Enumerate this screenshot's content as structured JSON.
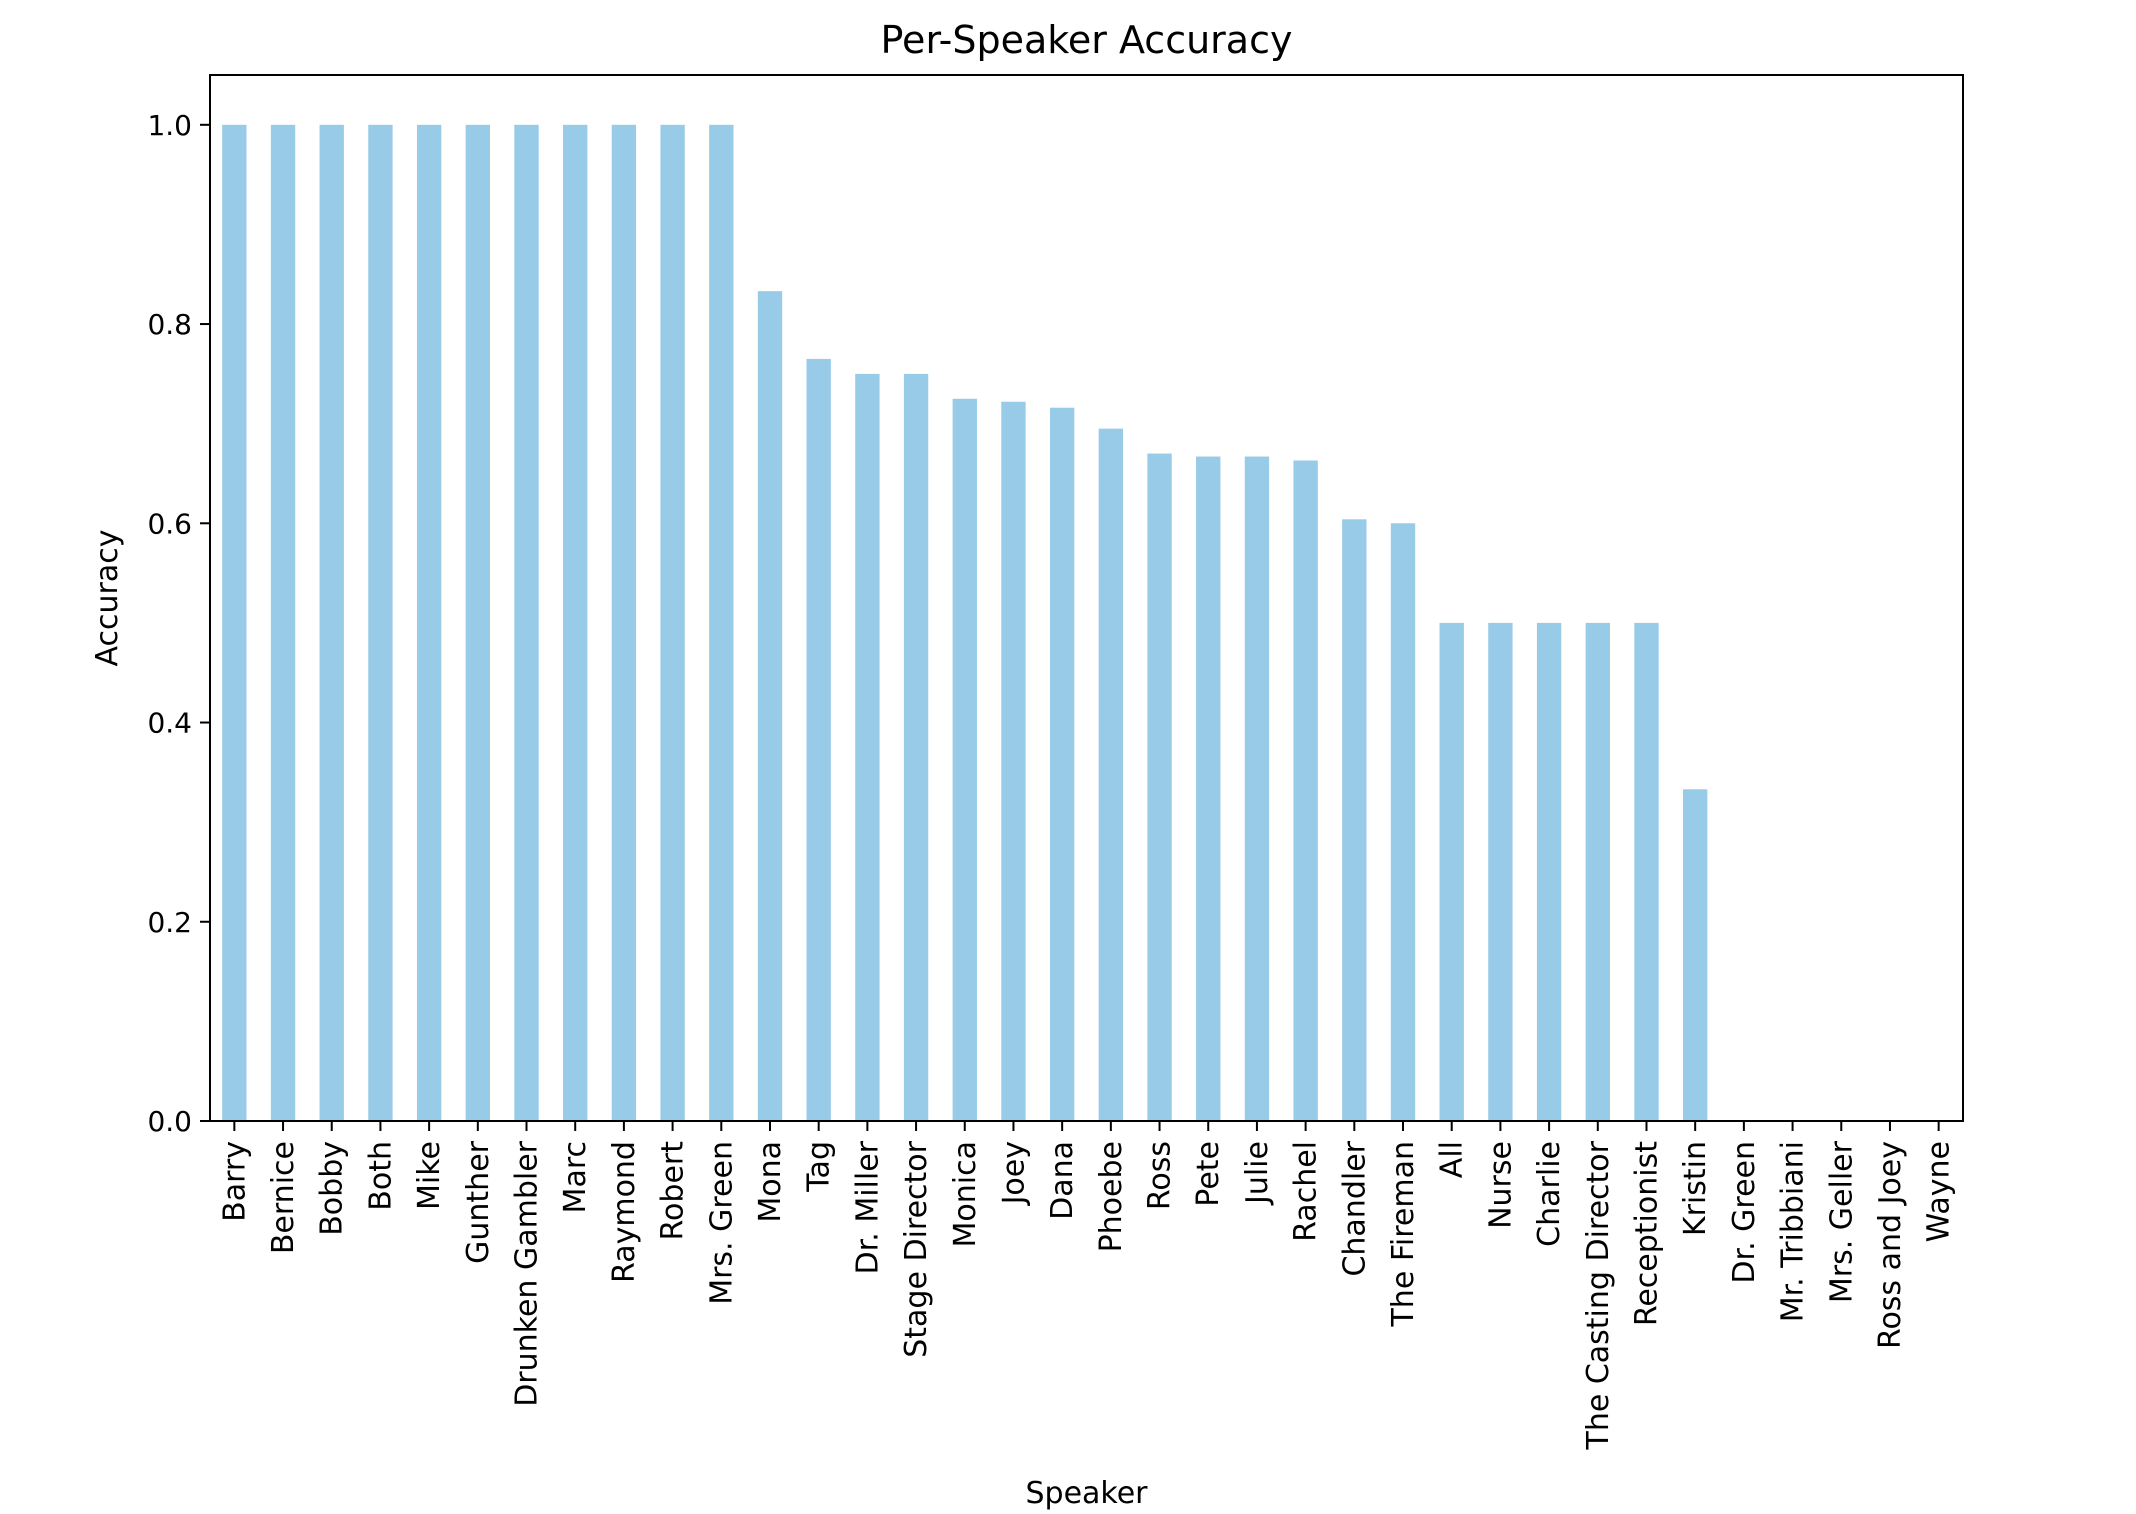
{
  "chart_data": {
    "type": "bar",
    "title": "Per-Speaker Accuracy",
    "xlabel": "Speaker",
    "ylabel": "Accuracy",
    "ylim": [
      0,
      1.05
    ],
    "yticks": [
      "0.0",
      "0.2",
      "0.4",
      "0.6",
      "0.8",
      "1.0"
    ],
    "grid": false,
    "legend": "none",
    "bar_color": "#97cbe8",
    "categories": [
      "Barry",
      "Bernice",
      "Bobby",
      "Both",
      "Mike",
      "Gunther",
      "Drunken Gambler",
      "Marc",
      "Raymond",
      "Robert",
      "Mrs. Green",
      "Mona",
      "Tag",
      "Dr. Miller",
      "Stage Director",
      "Monica",
      "Joey",
      "Dana",
      "Phoebe",
      "Ross",
      "Pete",
      "Julie",
      "Rachel",
      "Chandler",
      "The Fireman",
      "All",
      "Nurse",
      "Charlie",
      "The Casting Director",
      "Receptionist",
      "Kristin",
      "Dr. Green",
      "Mr. Tribbiani",
      "Mrs. Geller",
      "Ross and Joey",
      "Wayne"
    ],
    "values": [
      1.0,
      1.0,
      1.0,
      1.0,
      1.0,
      1.0,
      1.0,
      1.0,
      1.0,
      1.0,
      1.0,
      0.833,
      0.765,
      0.75,
      0.75,
      0.725,
      0.722,
      0.716,
      0.695,
      0.67,
      0.667,
      0.667,
      0.663,
      0.604,
      0.6,
      0.5,
      0.5,
      0.5,
      0.5,
      0.5,
      0.333,
      0.0,
      0.0,
      0.0,
      0.0,
      0.0
    ]
  }
}
